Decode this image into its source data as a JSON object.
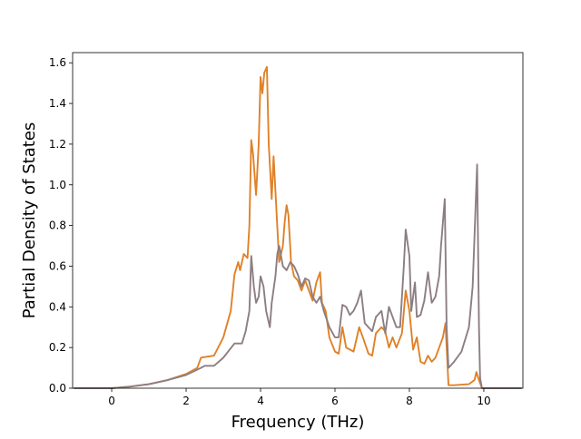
{
  "chart_data": {
    "type": "line",
    "title": "",
    "xlabel": "Frequency (THz)",
    "ylabel": "Partial Density of States",
    "xlim": [
      -1.05,
      11.05
    ],
    "ylim": [
      0.0,
      1.65
    ],
    "xticks": [
      0,
      2,
      4,
      6,
      8,
      10
    ],
    "yticks": [
      0.0,
      0.2,
      0.4,
      0.6,
      0.8,
      1.0,
      1.2,
      1.4,
      1.6
    ],
    "xtick_labels": [
      "0",
      "2",
      "4",
      "6",
      "8",
      "10"
    ],
    "ytick_labels": [
      "0.0",
      "0.2",
      "0.4",
      "0.6",
      "0.8",
      "1.0",
      "1.2",
      "1.4",
      "1.6"
    ],
    "grid": false,
    "legend": "none",
    "series": [
      {
        "color": "#e08127",
        "points": [
          [
            -1.0,
            0.0
          ],
          [
            0.0,
            0.0
          ],
          [
            0.5,
            0.008
          ],
          [
            1.0,
            0.02
          ],
          [
            1.5,
            0.04
          ],
          [
            2.0,
            0.07
          ],
          [
            2.3,
            0.1
          ],
          [
            2.4,
            0.15
          ],
          [
            2.75,
            0.16
          ],
          [
            3.0,
            0.25
          ],
          [
            3.2,
            0.38
          ],
          [
            3.3,
            0.56
          ],
          [
            3.4,
            0.62
          ],
          [
            3.45,
            0.58
          ],
          [
            3.55,
            0.66
          ],
          [
            3.65,
            0.64
          ],
          [
            3.7,
            0.8
          ],
          [
            3.75,
            1.22
          ],
          [
            3.8,
            1.15
          ],
          [
            3.88,
            0.95
          ],
          [
            3.95,
            1.2
          ],
          [
            4.0,
            1.53
          ],
          [
            4.05,
            1.45
          ],
          [
            4.1,
            1.55
          ],
          [
            4.17,
            1.58
          ],
          [
            4.22,
            1.2
          ],
          [
            4.3,
            0.93
          ],
          [
            4.35,
            1.14
          ],
          [
            4.42,
            0.9
          ],
          [
            4.5,
            0.62
          ],
          [
            4.6,
            0.7
          ],
          [
            4.65,
            0.82
          ],
          [
            4.7,
            0.9
          ],
          [
            4.75,
            0.85
          ],
          [
            4.82,
            0.62
          ],
          [
            4.9,
            0.55
          ],
          [
            5.0,
            0.53
          ],
          [
            5.1,
            0.48
          ],
          [
            5.2,
            0.53
          ],
          [
            5.3,
            0.48
          ],
          [
            5.4,
            0.43
          ],
          [
            5.5,
            0.52
          ],
          [
            5.6,
            0.57
          ],
          [
            5.65,
            0.42
          ],
          [
            5.75,
            0.38
          ],
          [
            5.85,
            0.25
          ],
          [
            6.0,
            0.18
          ],
          [
            6.1,
            0.17
          ],
          [
            6.2,
            0.3
          ],
          [
            6.3,
            0.2
          ],
          [
            6.5,
            0.18
          ],
          [
            6.65,
            0.3
          ],
          [
            6.75,
            0.25
          ],
          [
            6.9,
            0.17
          ],
          [
            7.0,
            0.16
          ],
          [
            7.1,
            0.27
          ],
          [
            7.25,
            0.3
          ],
          [
            7.35,
            0.28
          ],
          [
            7.45,
            0.2
          ],
          [
            7.55,
            0.25
          ],
          [
            7.65,
            0.2
          ],
          [
            7.8,
            0.27
          ],
          [
            7.9,
            0.48
          ],
          [
            8.0,
            0.38
          ],
          [
            8.1,
            0.19
          ],
          [
            8.2,
            0.25
          ],
          [
            8.3,
            0.13
          ],
          [
            8.4,
            0.12
          ],
          [
            8.5,
            0.16
          ],
          [
            8.6,
            0.13
          ],
          [
            8.7,
            0.15
          ],
          [
            8.8,
            0.2
          ],
          [
            8.9,
            0.25
          ],
          [
            8.97,
            0.32
          ],
          [
            9.05,
            0.015
          ],
          [
            9.2,
            0.015
          ],
          [
            9.6,
            0.02
          ],
          [
            9.75,
            0.04
          ],
          [
            9.8,
            0.08
          ],
          [
            9.85,
            0.05
          ],
          [
            9.95,
            0.0
          ],
          [
            11.0,
            0.0
          ]
        ]
      },
      {
        "color": "#8c7e82",
        "points": [
          [
            -1.0,
            0.0
          ],
          [
            0.0,
            0.0
          ],
          [
            0.5,
            0.008
          ],
          [
            1.0,
            0.02
          ],
          [
            1.5,
            0.04
          ],
          [
            2.0,
            0.065
          ],
          [
            2.4,
            0.1
          ],
          [
            2.5,
            0.11
          ],
          [
            2.75,
            0.11
          ],
          [
            3.0,
            0.15
          ],
          [
            3.3,
            0.22
          ],
          [
            3.5,
            0.22
          ],
          [
            3.6,
            0.28
          ],
          [
            3.7,
            0.38
          ],
          [
            3.75,
            0.65
          ],
          [
            3.82,
            0.5
          ],
          [
            3.88,
            0.42
          ],
          [
            3.95,
            0.45
          ],
          [
            4.0,
            0.55
          ],
          [
            4.08,
            0.5
          ],
          [
            4.15,
            0.38
          ],
          [
            4.25,
            0.3
          ],
          [
            4.3,
            0.42
          ],
          [
            4.4,
            0.55
          ],
          [
            4.45,
            0.66
          ],
          [
            4.5,
            0.7
          ],
          [
            4.6,
            0.6
          ],
          [
            4.7,
            0.58
          ],
          [
            4.8,
            0.62
          ],
          [
            4.9,
            0.6
          ],
          [
            5.0,
            0.56
          ],
          [
            5.1,
            0.5
          ],
          [
            5.2,
            0.54
          ],
          [
            5.3,
            0.53
          ],
          [
            5.4,
            0.45
          ],
          [
            5.5,
            0.42
          ],
          [
            5.6,
            0.45
          ],
          [
            5.7,
            0.38
          ],
          [
            5.85,
            0.3
          ],
          [
            6.0,
            0.25
          ],
          [
            6.1,
            0.25
          ],
          [
            6.2,
            0.41
          ],
          [
            6.3,
            0.4
          ],
          [
            6.4,
            0.36
          ],
          [
            6.5,
            0.38
          ],
          [
            6.6,
            0.42
          ],
          [
            6.7,
            0.48
          ],
          [
            6.8,
            0.32
          ],
          [
            6.9,
            0.3
          ],
          [
            7.0,
            0.28
          ],
          [
            7.1,
            0.35
          ],
          [
            7.25,
            0.38
          ],
          [
            7.35,
            0.27
          ],
          [
            7.45,
            0.4
          ],
          [
            7.55,
            0.35
          ],
          [
            7.65,
            0.3
          ],
          [
            7.75,
            0.3
          ],
          [
            7.85,
            0.6
          ],
          [
            7.9,
            0.78
          ],
          [
            8.0,
            0.65
          ],
          [
            8.05,
            0.38
          ],
          [
            8.15,
            0.52
          ],
          [
            8.2,
            0.35
          ],
          [
            8.3,
            0.36
          ],
          [
            8.4,
            0.43
          ],
          [
            8.5,
            0.57
          ],
          [
            8.6,
            0.42
          ],
          [
            8.7,
            0.45
          ],
          [
            8.8,
            0.55
          ],
          [
            8.85,
            0.7
          ],
          [
            8.95,
            0.93
          ],
          [
            9.0,
            0.3
          ],
          [
            9.05,
            0.1
          ],
          [
            9.2,
            0.13
          ],
          [
            9.4,
            0.18
          ],
          [
            9.6,
            0.3
          ],
          [
            9.7,
            0.5
          ],
          [
            9.78,
            0.9
          ],
          [
            9.82,
            1.1
          ],
          [
            9.87,
            0.3
          ],
          [
            9.9,
            0.05
          ],
          [
            9.95,
            0.0
          ],
          [
            11.0,
            0.0
          ]
        ]
      }
    ]
  }
}
